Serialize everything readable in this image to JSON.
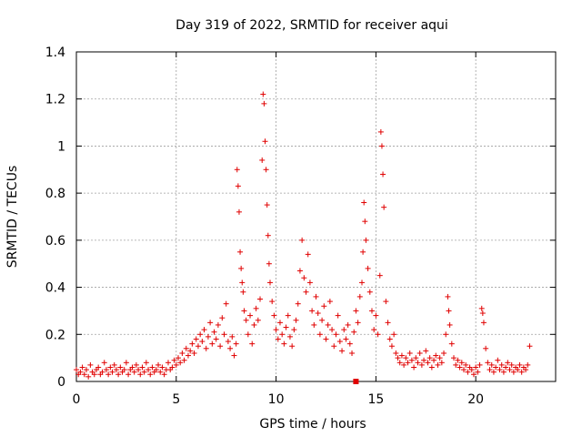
{
  "chart_data": {
    "type": "scatter",
    "title": "Day 319 of 2022, SRMTID for receiver aqui",
    "xlabel": "GPS time / hours",
    "ylabel": "SRMTID / TECUs",
    "xlim": [
      0,
      24
    ],
    "ylim": [
      0,
      1.4
    ],
    "x_ticks": [
      0,
      5,
      10,
      15,
      20
    ],
    "y_ticks": [
      0,
      0.2,
      0.4,
      0.6,
      0.8,
      1,
      1.2,
      1.4
    ],
    "x_tick_labels": [
      "0",
      "5",
      "10",
      "15",
      "20"
    ],
    "y_tick_labels": [
      "0",
      "0.2",
      "0.4",
      "0.6",
      "0.8",
      "1",
      "1.2",
      "1.4"
    ],
    "grid": true,
    "marker": "plus",
    "color": "#e00000",
    "series": [
      {
        "name": "SRMTID",
        "note": "dense envelope of points, estimated from the plot",
        "points": [
          [
            0.0,
            0.05
          ],
          [
            0.1,
            0.03
          ],
          [
            0.2,
            0.04
          ],
          [
            0.3,
            0.06
          ],
          [
            0.4,
            0.03
          ],
          [
            0.5,
            0.05
          ],
          [
            0.6,
            0.02
          ],
          [
            0.7,
            0.07
          ],
          [
            0.8,
            0.04
          ],
          [
            0.9,
            0.03
          ],
          [
            1.0,
            0.05
          ],
          [
            1.1,
            0.06
          ],
          [
            1.2,
            0.03
          ],
          [
            1.3,
            0.04
          ],
          [
            1.4,
            0.08
          ],
          [
            1.5,
            0.05
          ],
          [
            1.6,
            0.03
          ],
          [
            1.7,
            0.06
          ],
          [
            1.8,
            0.04
          ],
          [
            1.9,
            0.07
          ],
          [
            2.0,
            0.05
          ],
          [
            2.1,
            0.03
          ],
          [
            2.2,
            0.06
          ],
          [
            2.3,
            0.04
          ],
          [
            2.4,
            0.05
          ],
          [
            2.5,
            0.08
          ],
          [
            2.6,
            0.03
          ],
          [
            2.7,
            0.05
          ],
          [
            2.8,
            0.06
          ],
          [
            2.9,
            0.04
          ],
          [
            3.0,
            0.07
          ],
          [
            3.1,
            0.05
          ],
          [
            3.2,
            0.03
          ],
          [
            3.3,
            0.06
          ],
          [
            3.4,
            0.04
          ],
          [
            3.5,
            0.08
          ],
          [
            3.6,
            0.05
          ],
          [
            3.7,
            0.03
          ],
          [
            3.8,
            0.06
          ],
          [
            3.9,
            0.04
          ],
          [
            4.0,
            0.05
          ],
          [
            4.1,
            0.07
          ],
          [
            4.2,
            0.04
          ],
          [
            4.3,
            0.06
          ],
          [
            4.4,
            0.03
          ],
          [
            4.5,
            0.05
          ],
          [
            4.6,
            0.08
          ],
          [
            4.7,
            0.05
          ],
          [
            4.8,
            0.06
          ],
          [
            4.9,
            0.09
          ],
          [
            5.0,
            0.07
          ],
          [
            5.1,
            0.1
          ],
          [
            5.2,
            0.08
          ],
          [
            5.3,
            0.12
          ],
          [
            5.4,
            0.09
          ],
          [
            5.5,
            0.14
          ],
          [
            5.6,
            0.11
          ],
          [
            5.7,
            0.13
          ],
          [
            5.8,
            0.16
          ],
          [
            5.9,
            0.12
          ],
          [
            6.0,
            0.18
          ],
          [
            6.1,
            0.15
          ],
          [
            6.2,
            0.2
          ],
          [
            6.3,
            0.17
          ],
          [
            6.4,
            0.22
          ],
          [
            6.5,
            0.14
          ],
          [
            6.6,
            0.19
          ],
          [
            6.7,
            0.25
          ],
          [
            6.8,
            0.16
          ],
          [
            6.9,
            0.21
          ],
          [
            7.0,
            0.18
          ],
          [
            7.1,
            0.24
          ],
          [
            7.2,
            0.15
          ],
          [
            7.3,
            0.27
          ],
          [
            7.4,
            0.2
          ],
          [
            7.5,
            0.33
          ],
          [
            7.6,
            0.17
          ],
          [
            7.7,
            0.14
          ],
          [
            7.8,
            0.19
          ],
          [
            7.9,
            0.11
          ],
          [
            8.0,
            0.16
          ],
          [
            8.05,
            0.9
          ],
          [
            8.1,
            0.83
          ],
          [
            8.15,
            0.72
          ],
          [
            8.2,
            0.55
          ],
          [
            8.25,
            0.48
          ],
          [
            8.3,
            0.42
          ],
          [
            8.35,
            0.38
          ],
          [
            8.4,
            0.3
          ],
          [
            8.5,
            0.26
          ],
          [
            8.6,
            0.2
          ],
          [
            8.7,
            0.28
          ],
          [
            8.8,
            0.16
          ],
          [
            8.9,
            0.24
          ],
          [
            9.0,
            0.31
          ],
          [
            9.1,
            0.26
          ],
          [
            9.2,
            0.35
          ],
          [
            9.3,
            0.94
          ],
          [
            9.35,
            1.22
          ],
          [
            9.4,
            1.18
          ],
          [
            9.45,
            1.02
          ],
          [
            9.5,
            0.9
          ],
          [
            9.55,
            0.75
          ],
          [
            9.6,
            0.62
          ],
          [
            9.65,
            0.5
          ],
          [
            9.7,
            0.42
          ],
          [
            9.8,
            0.34
          ],
          [
            9.9,
            0.28
          ],
          [
            10.0,
            0.22
          ],
          [
            10.1,
            0.18
          ],
          [
            10.2,
            0.25
          ],
          [
            10.3,
            0.2
          ],
          [
            10.4,
            0.16
          ],
          [
            10.5,
            0.23
          ],
          [
            10.6,
            0.28
          ],
          [
            10.7,
            0.19
          ],
          [
            10.8,
            0.15
          ],
          [
            10.9,
            0.22
          ],
          [
            11.0,
            0.26
          ],
          [
            11.1,
            0.33
          ],
          [
            11.2,
            0.47
          ],
          [
            11.3,
            0.6
          ],
          [
            11.4,
            0.44
          ],
          [
            11.5,
            0.38
          ],
          [
            11.6,
            0.54
          ],
          [
            11.7,
            0.42
          ],
          [
            11.8,
            0.3
          ],
          [
            11.9,
            0.24
          ],
          [
            12.0,
            0.36
          ],
          [
            12.1,
            0.29
          ],
          [
            12.2,
            0.2
          ],
          [
            12.3,
            0.26
          ],
          [
            12.4,
            0.32
          ],
          [
            12.5,
            0.18
          ],
          [
            12.6,
            0.24
          ],
          [
            12.7,
            0.34
          ],
          [
            12.8,
            0.22
          ],
          [
            12.9,
            0.15
          ],
          [
            13.0,
            0.2
          ],
          [
            13.1,
            0.28
          ],
          [
            13.2,
            0.17
          ],
          [
            13.3,
            0.13
          ],
          [
            13.4,
            0.22
          ],
          [
            13.5,
            0.18
          ],
          [
            13.6,
            0.24
          ],
          [
            13.7,
            0.16
          ],
          [
            13.8,
            0.12
          ],
          [
            13.9,
            0.21
          ],
          [
            14.0,
            0.3
          ],
          [
            14.1,
            0.25
          ],
          [
            14.2,
            0.36
          ],
          [
            14.3,
            0.42
          ],
          [
            14.35,
            0.55
          ],
          [
            14.4,
            0.76
          ],
          [
            14.45,
            0.68
          ],
          [
            14.5,
            0.6
          ],
          [
            14.6,
            0.48
          ],
          [
            14.7,
            0.38
          ],
          [
            14.8,
            0.3
          ],
          [
            14.9,
            0.22
          ],
          [
            15.0,
            0.28
          ],
          [
            15.1,
            0.2
          ],
          [
            15.2,
            0.45
          ],
          [
            15.25,
            1.06
          ],
          [
            15.3,
            1.0
          ],
          [
            15.35,
            0.88
          ],
          [
            15.4,
            0.74
          ],
          [
            15.5,
            0.34
          ],
          [
            15.6,
            0.25
          ],
          [
            15.7,
            0.18
          ],
          [
            15.8,
            0.15
          ],
          [
            15.9,
            0.2
          ],
          [
            16.0,
            0.12
          ],
          [
            16.1,
            0.1
          ],
          [
            16.2,
            0.08
          ],
          [
            16.3,
            0.11
          ],
          [
            16.4,
            0.07
          ],
          [
            16.5,
            0.1
          ],
          [
            16.6,
            0.08
          ],
          [
            16.7,
            0.12
          ],
          [
            16.8,
            0.09
          ],
          [
            16.9,
            0.06
          ],
          [
            17.0,
            0.1
          ],
          [
            17.1,
            0.08
          ],
          [
            17.2,
            0.12
          ],
          [
            17.3,
            0.07
          ],
          [
            17.4,
            0.09
          ],
          [
            17.5,
            0.13
          ],
          [
            17.6,
            0.08
          ],
          [
            17.7,
            0.1
          ],
          [
            17.8,
            0.06
          ],
          [
            17.9,
            0.09
          ],
          [
            18.0,
            0.11
          ],
          [
            18.1,
            0.07
          ],
          [
            18.2,
            0.1
          ],
          [
            18.3,
            0.08
          ],
          [
            18.4,
            0.12
          ],
          [
            18.5,
            0.2
          ],
          [
            18.6,
            0.36
          ],
          [
            18.65,
            0.3
          ],
          [
            18.7,
            0.24
          ],
          [
            18.8,
            0.16
          ],
          [
            18.9,
            0.1
          ],
          [
            19.0,
            0.07
          ],
          [
            19.1,
            0.09
          ],
          [
            19.2,
            0.06
          ],
          [
            19.3,
            0.08
          ],
          [
            19.4,
            0.05
          ],
          [
            19.5,
            0.07
          ],
          [
            19.6,
            0.04
          ],
          [
            19.7,
            0.06
          ],
          [
            19.8,
            0.05
          ],
          [
            19.9,
            0.03
          ],
          [
            20.0,
            0.06
          ],
          [
            20.1,
            0.04
          ],
          [
            20.2,
            0.07
          ],
          [
            20.3,
            0.31
          ],
          [
            20.35,
            0.29
          ],
          [
            20.4,
            0.25
          ],
          [
            20.5,
            0.14
          ],
          [
            20.6,
            0.08
          ],
          [
            20.7,
            0.05
          ],
          [
            20.8,
            0.07
          ],
          [
            20.9,
            0.04
          ],
          [
            21.0,
            0.06
          ],
          [
            21.1,
            0.09
          ],
          [
            21.2,
            0.05
          ],
          [
            21.3,
            0.07
          ],
          [
            21.4,
            0.04
          ],
          [
            21.5,
            0.06
          ],
          [
            21.6,
            0.08
          ],
          [
            21.7,
            0.05
          ],
          [
            21.8,
            0.07
          ],
          [
            21.9,
            0.04
          ],
          [
            22.0,
            0.06
          ],
          [
            22.1,
            0.05
          ],
          [
            22.2,
            0.07
          ],
          [
            22.3,
            0.04
          ],
          [
            22.4,
            0.06
          ],
          [
            22.5,
            0.05
          ],
          [
            22.6,
            0.07
          ],
          [
            22.7,
            0.15
          ]
        ]
      }
    ],
    "outlier_marker": {
      "x": 14.0,
      "y": 0.0,
      "shape": "square"
    }
  }
}
